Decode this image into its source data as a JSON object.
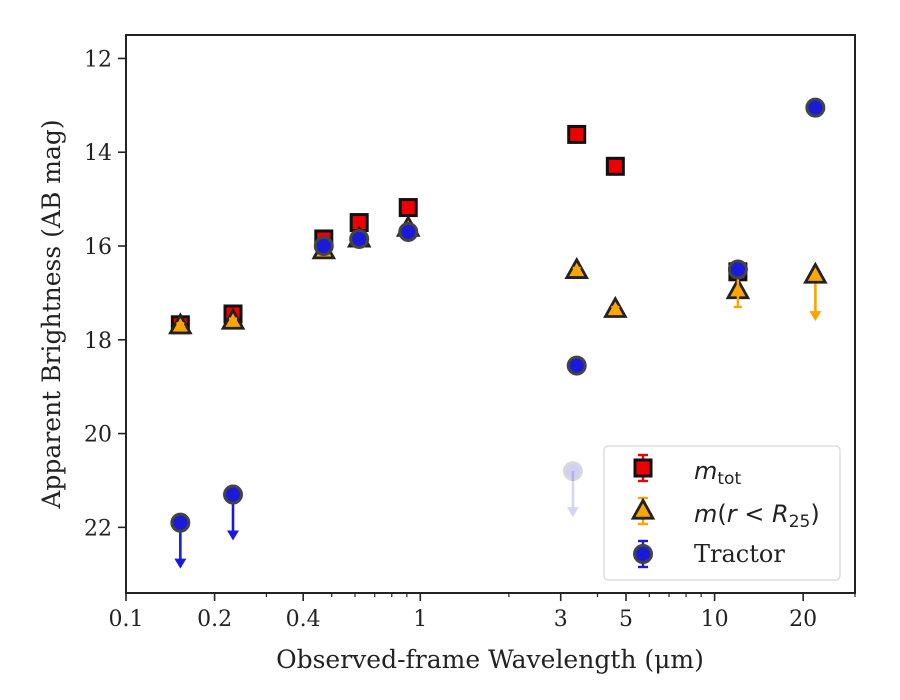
{
  "chart_data": {
    "type": "scatter",
    "xlabel": "Observed-frame Wavelength (μm)",
    "ylabel": "Apparent Brightness (AB mag)",
    "xscale": "log",
    "xlim": [
      0.1,
      30
    ],
    "ylim": [
      23.4,
      11.5
    ],
    "y_inverted": true,
    "xticks": [
      0.1,
      0.2,
      0.4,
      1,
      3,
      5,
      10,
      20
    ],
    "xtick_labels": [
      "0.1",
      "0.2",
      "0.4",
      "1",
      "3",
      "5",
      "10",
      "20"
    ],
    "yticks": [
      12,
      14,
      16,
      18,
      20,
      22
    ],
    "ytick_labels": [
      "12",
      "14",
      "16",
      "18",
      "20",
      "22"
    ],
    "legend_position": "lower-right",
    "series": [
      {
        "name": "m_tot",
        "marker": "square",
        "color": "#ee0000",
        "points": [
          {
            "x": 0.153,
            "y": 17.68,
            "err": 0.05
          },
          {
            "x": 0.231,
            "y": 17.45,
            "err": 0.05
          },
          {
            "x": 0.47,
            "y": 15.85,
            "err": 0.05
          },
          {
            "x": 0.62,
            "y": 15.5,
            "err": 0.05
          },
          {
            "x": 0.91,
            "y": 15.18,
            "err": 0.05
          },
          {
            "x": 3.4,
            "y": 13.62,
            "err": 0.05
          },
          {
            "x": 4.6,
            "y": 14.3,
            "err": 0.05
          },
          {
            "x": 12.0,
            "y": 16.55,
            "err": 0.05
          }
        ]
      },
      {
        "name": "m(r < R25)",
        "marker": "triangle",
        "color": "#ffa500",
        "points": [
          {
            "x": 0.153,
            "y": 17.7,
            "err": 0.05
          },
          {
            "x": 0.231,
            "y": 17.6,
            "err": 0.05
          },
          {
            "x": 0.47,
            "y": 16.1,
            "err": 0.05
          },
          {
            "x": 0.62,
            "y": 15.85,
            "err": 0.05
          },
          {
            "x": 0.91,
            "y": 15.62,
            "err": 0.05
          },
          {
            "x": 3.4,
            "y": 16.52,
            "err": 0.05
          },
          {
            "x": 4.6,
            "y": 17.35,
            "err": 0.05
          },
          {
            "x": 12.0,
            "y": 16.95,
            "err": 0.35
          },
          {
            "x": 22.0,
            "y": 16.62,
            "upper_limit": true
          }
        ]
      },
      {
        "name": "Tractor",
        "marker": "circle",
        "color": "#1a1adb",
        "points": [
          {
            "x": 0.153,
            "y": 21.9,
            "upper_limit": true
          },
          {
            "x": 0.231,
            "y": 21.3,
            "upper_limit": true
          },
          {
            "x": 0.47,
            "y": 16.0,
            "err": 0.05
          },
          {
            "x": 0.62,
            "y": 15.85,
            "err": 0.05
          },
          {
            "x": 0.91,
            "y": 15.7,
            "err": 0.05
          },
          {
            "x": 3.4,
            "y": 18.55,
            "err": 0.05
          },
          {
            "x": 12.0,
            "y": 16.5,
            "err": 0.05
          },
          {
            "x": 22.0,
            "y": 13.05,
            "err": 0.05
          }
        ]
      }
    ]
  }
}
